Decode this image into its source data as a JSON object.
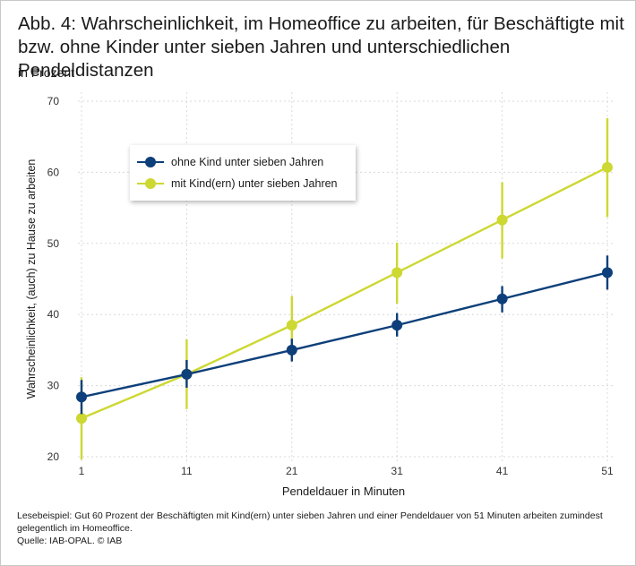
{
  "title": "Abb. 4: Wahrscheinlichkeit, im Homeoffice zu arbeiten, für Beschäftigte mit bzw. ohne Kinder unter sieben Jahren und unterschiedlichen Pendeldistanzen",
  "subtitle": "in Prozent",
  "footer": {
    "note": "Lesebeispiel: Gut 60 Prozent der Beschäftigten mit Kind(ern) unter sieben Jahren und einer Pendeldauer von 51 Minuten arbeiten zumindest gelegentlich im Homeoffice.",
    "source": "Quelle: IAB-OPAL. © IAB"
  },
  "colors": {
    "series1": "#0d3f7a",
    "series2": "#cdd832",
    "grid": "#d9d9d9"
  },
  "chart_data": {
    "type": "line",
    "xlabel": "Pendeldauer in Minuten",
    "ylabel": "Wahrscheinlichkeit, (auch) zu Hause zu arbeiten",
    "x": [
      1,
      11,
      21,
      31,
      41,
      51
    ],
    "xlim": [
      1,
      51
    ],
    "ylim": [
      20,
      70
    ],
    "yticks": [
      20,
      30,
      40,
      50,
      60,
      70
    ],
    "grid": true,
    "legend_position": "top-left",
    "series": [
      {
        "name": "ohne Kind unter sieben Jahren",
        "values": [
          28.4,
          31.6,
          35.0,
          38.5,
          42.2,
          45.9
        ],
        "ci_low": [
          26.0,
          29.7,
          33.4,
          36.9,
          40.3,
          43.5
        ],
        "ci_high": [
          30.8,
          33.6,
          36.6,
          40.2,
          44.0,
          48.3
        ]
      },
      {
        "name": "mit Kind(ern) unter sieben Jahren",
        "values": [
          25.4,
          31.6,
          38.5,
          45.9,
          53.3,
          60.7
        ],
        "ci_low": [
          19.6,
          26.7,
          34.4,
          41.5,
          47.9,
          53.7
        ],
        "ci_high": [
          31.2,
          36.5,
          42.6,
          50.1,
          58.6,
          67.6
        ]
      }
    ]
  }
}
